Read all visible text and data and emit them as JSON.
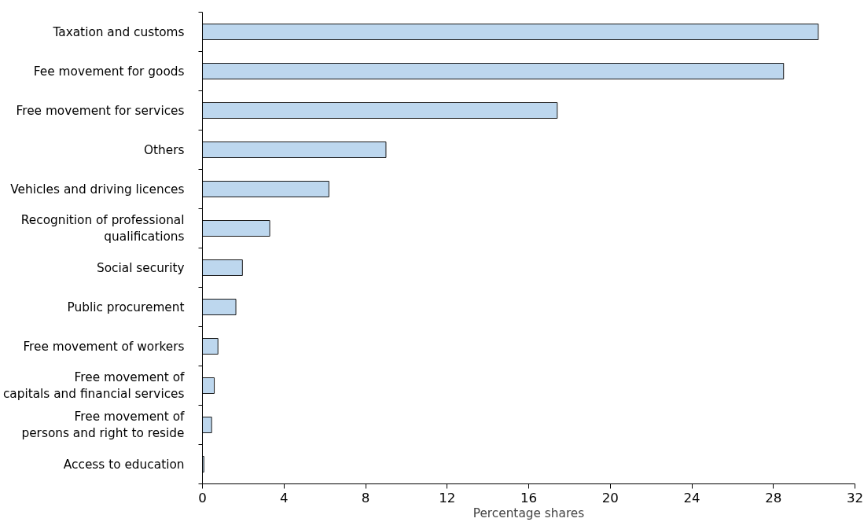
{
  "chart_data": {
    "type": "bar",
    "orientation": "horizontal",
    "xlabel": "Percentage shares",
    "categories": [
      "Taxation and customs",
      "Fee movement for goods",
      "Free movement for services",
      "Others",
      "Vehicles and driving licences",
      "Recognition of professional\nqualifications",
      "Social security",
      "Public procurement",
      "Free movement of workers",
      "Free movement of\ncapitals and financial services",
      "Free movement of\npersons and right to reside",
      "Access to education"
    ],
    "values": [
      30.2,
      28.5,
      17.4,
      9.0,
      6.2,
      3.3,
      1.96,
      1.64,
      0.76,
      0.58,
      0.45,
      0.07
    ],
    "color": "#bdd7ee",
    "xlim": [
      0,
      32
    ],
    "xticks": [
      0,
      4,
      8,
      12,
      16,
      20,
      24,
      28,
      32
    ],
    "grid": false
  }
}
